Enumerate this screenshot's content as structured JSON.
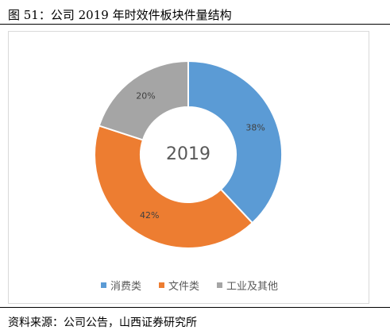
{
  "caption": "图 51：公司 2019 年时效件板块件量结构",
  "source": "资料来源：公司公告，山西证券研究所",
  "chart_data": {
    "type": "pie",
    "donut": true,
    "center_label": "2019",
    "categories": [
      "消费类",
      "文件类",
      "工业及其他"
    ],
    "values": [
      38,
      42,
      20
    ],
    "labels": [
      "38%",
      "42%",
      "20%"
    ],
    "colors": [
      "#5b9bd5",
      "#ed7d31",
      "#a5a5a5"
    ],
    "legend_position": "bottom"
  }
}
